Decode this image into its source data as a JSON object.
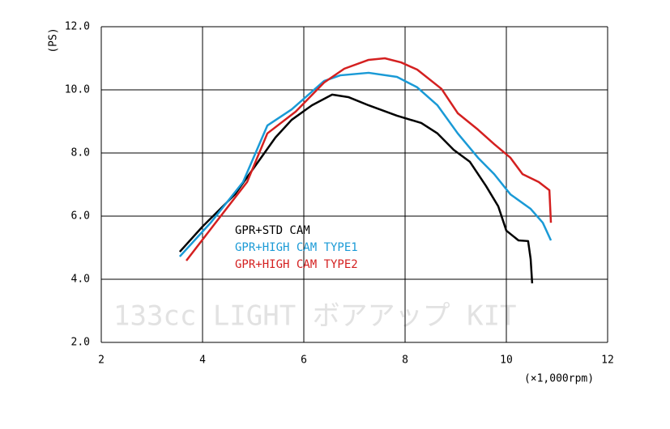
{
  "chart_data": {
    "type": "line",
    "y_label": "(PS)",
    "x_label": "(×1,000rpm)",
    "watermark": "133cc LIGHT ボアアップ KIT",
    "xlim": [
      2,
      12
    ],
    "xticks": [
      2,
      4,
      6,
      8,
      10,
      12
    ],
    "ylim": [
      2,
      12
    ],
    "yticks": [
      {
        "value": 2,
        "label": "2.0"
      },
      {
        "value": 4,
        "label": "4.0"
      },
      {
        "value": 6,
        "label": "6.0"
      },
      {
        "value": 8,
        "label": "8.0"
      },
      {
        "value": 10,
        "label": "10.0"
      },
      {
        "value": 12,
        "label": "12.0"
      }
    ],
    "grid": true,
    "series": [
      {
        "name": "GPR+STD CAM",
        "color": "#000000",
        "x": [
          3.55,
          4.0,
          4.64,
          5.04,
          5.44,
          5.76,
          6.16,
          6.56,
          6.88,
          7.28,
          7.84,
          8.32,
          8.64,
          8.96,
          9.28,
          9.6,
          9.84,
          10.0,
          10.24,
          10.43,
          10.48,
          10.51
        ],
        "values": [
          4.87,
          5.67,
          6.69,
          7.59,
          8.49,
          9.05,
          9.51,
          9.85,
          9.77,
          9.51,
          9.18,
          8.95,
          8.62,
          8.1,
          7.72,
          6.95,
          6.31,
          5.54,
          5.23,
          5.21,
          4.64,
          3.87
        ]
      },
      {
        "name": "GPR+HIGH CAM TYPE1",
        "color": "#1a9ad6",
        "x": [
          3.55,
          4.16,
          4.8,
          5.28,
          5.76,
          6.4,
          6.72,
          7.28,
          7.84,
          8.24,
          8.64,
          9.04,
          9.44,
          9.76,
          10.08,
          10.48,
          10.72,
          10.88
        ],
        "values": [
          4.72,
          5.79,
          7.08,
          8.87,
          9.38,
          10.28,
          10.46,
          10.54,
          10.41,
          10.08,
          9.51,
          8.62,
          7.85,
          7.33,
          6.69,
          6.23,
          5.79,
          5.23
        ]
      },
      {
        "name": "GPR+HIGH CAM TYPE2",
        "color": "#d42020",
        "x": [
          3.68,
          4.32,
          4.88,
          5.28,
          5.84,
          6.4,
          6.8,
          7.28,
          7.6,
          7.92,
          8.24,
          8.72,
          9.04,
          9.44,
          9.76,
          10.08,
          10.32,
          10.64,
          10.85,
          10.88
        ],
        "values": [
          4.59,
          5.92,
          7.08,
          8.62,
          9.31,
          10.23,
          10.67,
          10.95,
          11.0,
          10.87,
          10.64,
          10.03,
          9.26,
          8.74,
          8.28,
          7.85,
          7.33,
          7.08,
          6.82,
          5.79
        ]
      }
    ]
  }
}
